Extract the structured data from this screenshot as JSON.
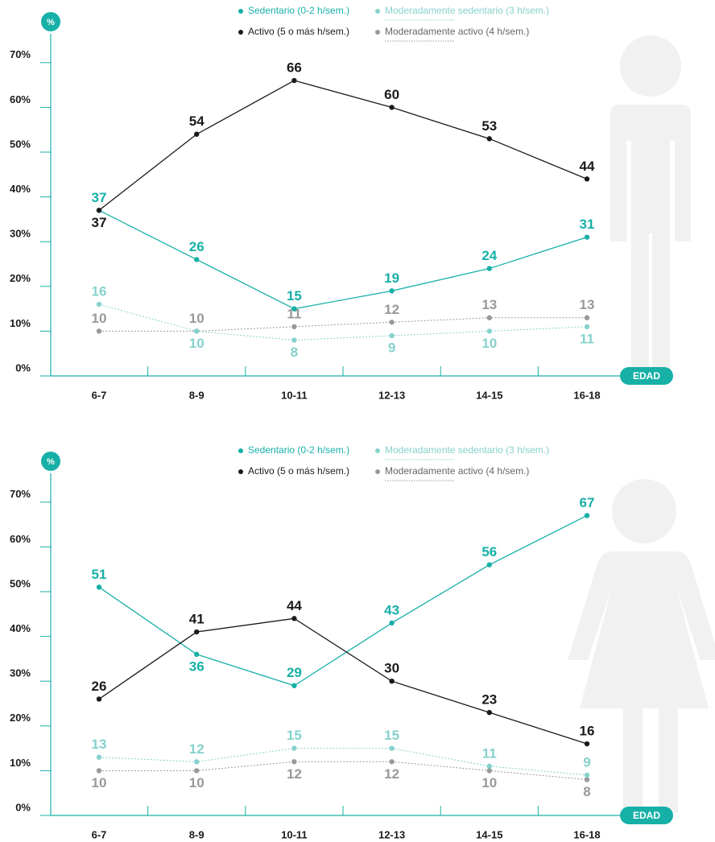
{
  "chart_data": [
    {
      "type": "line",
      "y_label": "%",
      "x_label": "EDAD",
      "categories": [
        "6-7",
        "8-9",
        "10-11",
        "12-13",
        "14-15",
        "16-18"
      ],
      "ylim": [
        0,
        70
      ],
      "yticks": [
        {
          "value": 0,
          "label": "0%"
        },
        {
          "value": 10,
          "label": "10%"
        },
        {
          "value": 20,
          "label": "20%"
        },
        {
          "value": 30,
          "label": "30%"
        },
        {
          "value": 40,
          "label": "40%"
        },
        {
          "value": 50,
          "label": "50%"
        },
        {
          "value": 60,
          "label": "60%"
        },
        {
          "value": 70,
          "label": "70%"
        }
      ],
      "series": [
        {
          "name": "Sedentario (0-2 h/sem.)",
          "color": "#17b0a7",
          "line_style": "solid",
          "values": [
            37,
            26,
            15,
            19,
            24,
            31
          ]
        },
        {
          "name": "Activo (5 o más h/sem.)",
          "color": "#1a1a1a",
          "line_style": "solid",
          "values": [
            37,
            54,
            66,
            60,
            53,
            44
          ]
        },
        {
          "name": "Moderadamente sedentario (3 h/sem.)",
          "color": "#86d1cd",
          "line_style": "dotted",
          "values": [
            16,
            10,
            8,
            9,
            10,
            11
          ]
        },
        {
          "name": "Moderadamente activo (4 h/sem.)",
          "color": "#999999",
          "line_style": "dotted",
          "values": [
            10,
            10,
            11,
            12,
            13,
            13
          ]
        }
      ]
    },
    {
      "type": "line",
      "y_label": "%",
      "x_label": "EDAD",
      "categories": [
        "6-7",
        "8-9",
        "10-11",
        "12-13",
        "14-15",
        "16-18"
      ],
      "ylim": [
        0,
        70
      ],
      "yticks": [
        {
          "value": 0,
          "label": "0%"
        },
        {
          "value": 10,
          "label": "10%"
        },
        {
          "value": 20,
          "label": "20%"
        },
        {
          "value": 30,
          "label": "30%"
        },
        {
          "value": 40,
          "label": "40%"
        },
        {
          "value": 50,
          "label": "50%"
        },
        {
          "value": 60,
          "label": "60%"
        },
        {
          "value": 70,
          "label": "70%"
        }
      ],
      "series": [
        {
          "name": "Sedentario (0-2 h/sem.)",
          "color": "#17b0a7",
          "line_style": "solid",
          "values": [
            51,
            36,
            29,
            43,
            56,
            67
          ]
        },
        {
          "name": "Activo (5 o más h/sem.)",
          "color": "#1a1a1a",
          "line_style": "solid",
          "values": [
            26,
            41,
            44,
            30,
            23,
            16
          ]
        },
        {
          "name": "Moderadamente sedentario (3 h/sem.)",
          "color": "#86d1cd",
          "line_style": "dotted",
          "values": [
            13,
            12,
            15,
            15,
            11,
            9
          ]
        },
        {
          "name": "Moderadamente activo (4 h/sem.)",
          "color": "#999999",
          "line_style": "dotted",
          "values": [
            10,
            10,
            12,
            12,
            10,
            8
          ]
        }
      ]
    }
  ]
}
